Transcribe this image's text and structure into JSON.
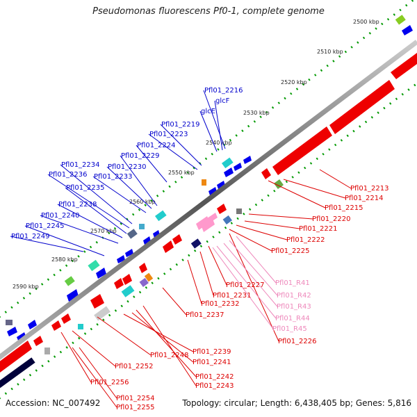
{
  "header": {
    "title": "Pseudomonas fluorescens Pf0-1, complete genome"
  },
  "footer": {
    "accession": "Accession: NC_007492",
    "topology": "Topology: circular; Length: 6,438,405 bp; Genes: 5,816"
  },
  "colors": {
    "upper_gene": "#0000cc",
    "lower_gene": "#dd0000",
    "rna_gene": "#ee88bb",
    "cds_red": "#ee0000",
    "cds_blue": "#0000ee",
    "rna_pink": "#ff99cc",
    "gc_track": "#00003a",
    "backbone": "#777777",
    "tick": "#009900"
  },
  "kbp_ticks": [
    "2500 kbp",
    "2510 kbp",
    "2520 kbp",
    "2530 kbp",
    "2540 kbp",
    "2550 kbp",
    "2560 kbp",
    "2570 kbp",
    "2580 kbp",
    "2590 kbp"
  ],
  "upper_genes": [
    "Pfl01_2216",
    "glcF",
    "glcE",
    "Pfl01_2219",
    "Pfl01_2223",
    "Pfl01_2224",
    "Pfl01_2229",
    "Pfl01_2234",
    "Pfl01_2230",
    "Pfl01_2236",
    "Pfl01_2233",
    "Pfl01_2235",
    "Pfl01_2238",
    "Pfl01_2240",
    "Pfl01_2245",
    "Pfl01_2249"
  ],
  "lower_genes": [
    "Pfl01_2213",
    "Pfl01_2214",
    "Pfl01_2215",
    "Pfl01_2220",
    "Pfl01_2221",
    "Pfl01_2222",
    "Pfl01_2225",
    "Pfl01_2227",
    "Pfl01_2231",
    "Pfl01_2232",
    "Pfl01_2237",
    "Pfl01_2226",
    "Pfl01_2239",
    "Pfl01_2248",
    "Pfl01_2241",
    "Pfl01_2252",
    "Pfl01_2242",
    "Pfl01_2243",
    "Pfl01_2256",
    "Pfl01_2254",
    "Pfl01_2255"
  ],
  "rna_genes": [
    "Pfl01_R41",
    "Pfl01_R42",
    "Pfl01_R43",
    "Pfl01_R44",
    "Pfl01_R45"
  ]
}
